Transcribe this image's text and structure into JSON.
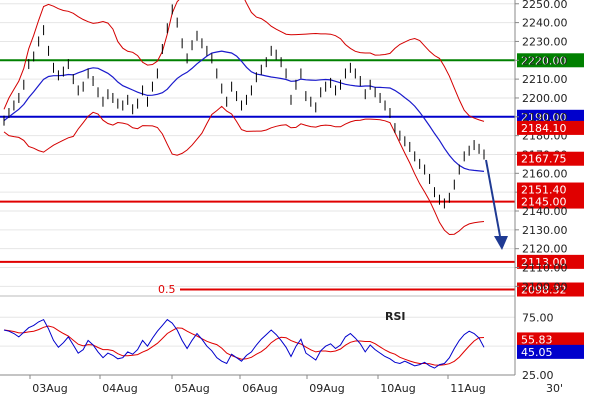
{
  "chart_data": {
    "type": "line",
    "price_axis": {
      "ticks": [
        "2250.00",
        "2240.00",
        "2230.00",
        "2220.00",
        "2210.00",
        "2200.00",
        "2190.00",
        "2180.00",
        "2170.00",
        "2160.00",
        "2150.00",
        "2140.00",
        "2130.00",
        "2120.00",
        "2110.00",
        "2100.00"
      ],
      "ylim": [
        2097,
        2252
      ]
    },
    "rsi_axis": {
      "ticks": [
        "75.00",
        "50.00",
        "25.00"
      ],
      "ylim": [
        25,
        90
      ]
    },
    "x_labels": [
      "03Aug",
      "04Aug",
      "05Aug",
      "06Aug",
      "09Aug",
      "10Aug",
      "11Aug"
    ],
    "timeframe_label": "30'",
    "rsi_label": "RSI",
    "fib_label": "0.5",
    "levels": [
      {
        "value": 2220.0,
        "label": "2220.00",
        "color": "#008000"
      },
      {
        "value": 2190.0,
        "label": "2190.00",
        "color": "#0000cc"
      },
      {
        "value": 2145.0,
        "label": "2145.00",
        "color": "#e00000"
      },
      {
        "value": 2113.0,
        "label": "2113.00",
        "color": "#e00000"
      },
      {
        "value": 2098.32,
        "label": "2098.32",
        "color": "#e00000"
      }
    ],
    "markers": [
      {
        "value": 2184.1,
        "label": "2184.10",
        "color": "#e00000"
      },
      {
        "value": 2167.75,
        "label": "2167.75",
        "color": "#e00000"
      },
      {
        "value": 2151.4,
        "label": "2151.40",
        "color": "#e00000"
      }
    ],
    "rsi_markers": [
      {
        "value": 55.83,
        "label": "55.83",
        "color": "#e00000"
      },
      {
        "value": 45.05,
        "label": "45.05",
        "color": "#0000cc"
      }
    ],
    "price_series": [
      2188,
      2192,
      2196,
      2200,
      2207,
      2218,
      2222,
      2230,
      2236,
      2225,
      2216,
      2212,
      2214,
      2218,
      2210,
      2204,
      2206,
      2213,
      2209,
      2203,
      2198,
      2202,
      2200,
      2197,
      2196,
      2199,
      2194,
      2197,
      2204,
      2198,
      2206,
      2213,
      2226,
      2237,
      2247,
      2240,
      2229,
      2221,
      2228,
      2233,
      2229,
      2225,
      2221,
      2213,
      2205,
      2198,
      2206,
      2201,
      2196,
      2199,
      2204,
      2211,
      2215,
      2219,
      2225,
      2223,
      2219,
      2213,
      2199,
      2207,
      2213,
      2201,
      2198,
      2195,
      2203,
      2206,
      2208,
      2204,
      2207,
      2213,
      2216,
      2213,
      2209,
      2202,
      2207,
      2203,
      2200,
      2196,
      2192,
      2184,
      2180,
      2177,
      2174,
      2169,
      2165,
      2162,
      2157,
      2150,
      2146,
      2144,
      2147,
      2154,
      2162,
      2169,
      2172,
      2175,
      2173,
      2170
    ],
    "price_colors": {
      "price": "#000000",
      "ma": "#1a1acc",
      "bands": "#d40000"
    },
    "rsi_series": [
      64,
      63,
      61,
      58,
      62,
      66,
      68,
      71,
      73,
      65,
      55,
      49,
      53,
      58,
      51,
      44,
      47,
      55,
      51,
      45,
      40,
      44,
      42,
      39,
      40,
      45,
      43,
      47,
      55,
      50,
      57,
      63,
      68,
      73,
      70,
      64,
      55,
      48,
      55,
      61,
      56,
      50,
      46,
      40,
      37,
      35,
      43,
      40,
      37,
      42,
      45,
      51,
      56,
      60,
      64,
      60,
      55,
      49,
      41,
      50,
      56,
      44,
      41,
      38,
      46,
      50,
      52,
      48,
      51,
      58,
      61,
      57,
      52,
      45,
      51,
      47,
      44,
      41,
      39,
      36,
      35,
      37,
      35,
      33,
      34,
      36,
      33,
      31,
      34,
      35,
      40,
      48,
      55,
      60,
      63,
      61,
      57,
      49
    ]
  }
}
